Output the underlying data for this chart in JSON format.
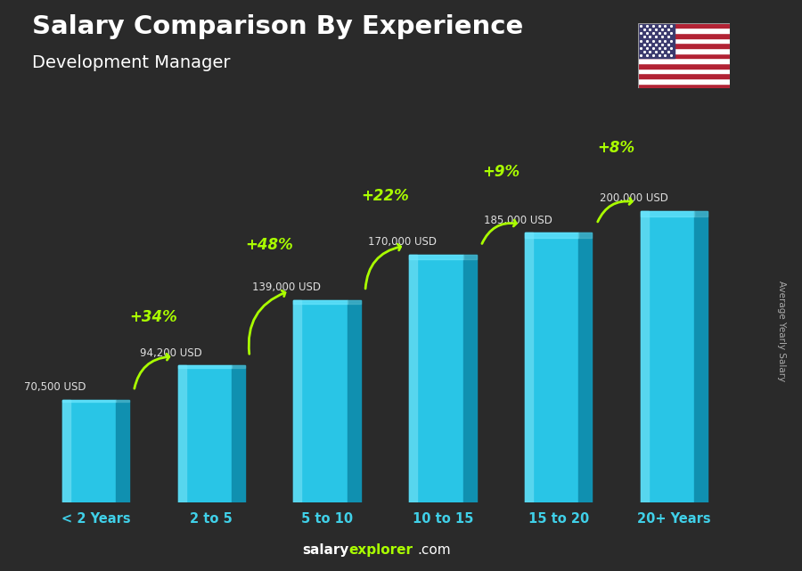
{
  "title": "Salary Comparison By Experience",
  "subtitle": "Development Manager",
  "ylabel": "Average Yearly Salary",
  "categories": [
    "< 2 Years",
    "2 to 5",
    "5 to 10",
    "10 to 15",
    "15 to 20",
    "20+ Years"
  ],
  "values": [
    70500,
    94200,
    139000,
    170000,
    185000,
    200000
  ],
  "value_labels": [
    "70,500 USD",
    "94,200 USD",
    "139,000 USD",
    "170,000 USD",
    "185,000 USD",
    "200,000 USD"
  ],
  "pct_labels": [
    "+34%",
    "+48%",
    "+22%",
    "+9%",
    "+8%"
  ],
  "bar_color_main": "#29c5e6",
  "bar_color_light": "#5dd8f0",
  "bar_color_dark": "#1090b0",
  "bar_color_shadow": "#0a6080",
  "bg_color": "#2a2a2a",
  "title_color": "#ffffff",
  "subtitle_color": "#ffffff",
  "value_label_color": "#e0e0e0",
  "pct_color": "#aaff00",
  "xtick_color": "#40d0e8",
  "footer_salary_color": "#ffffff",
  "footer_explorer_color": "#aaff00",
  "footer_com_color": "#ffffff",
  "ylabel_color": "#aaaaaa",
  "ylim_max": 235000,
  "bar_width": 0.58
}
